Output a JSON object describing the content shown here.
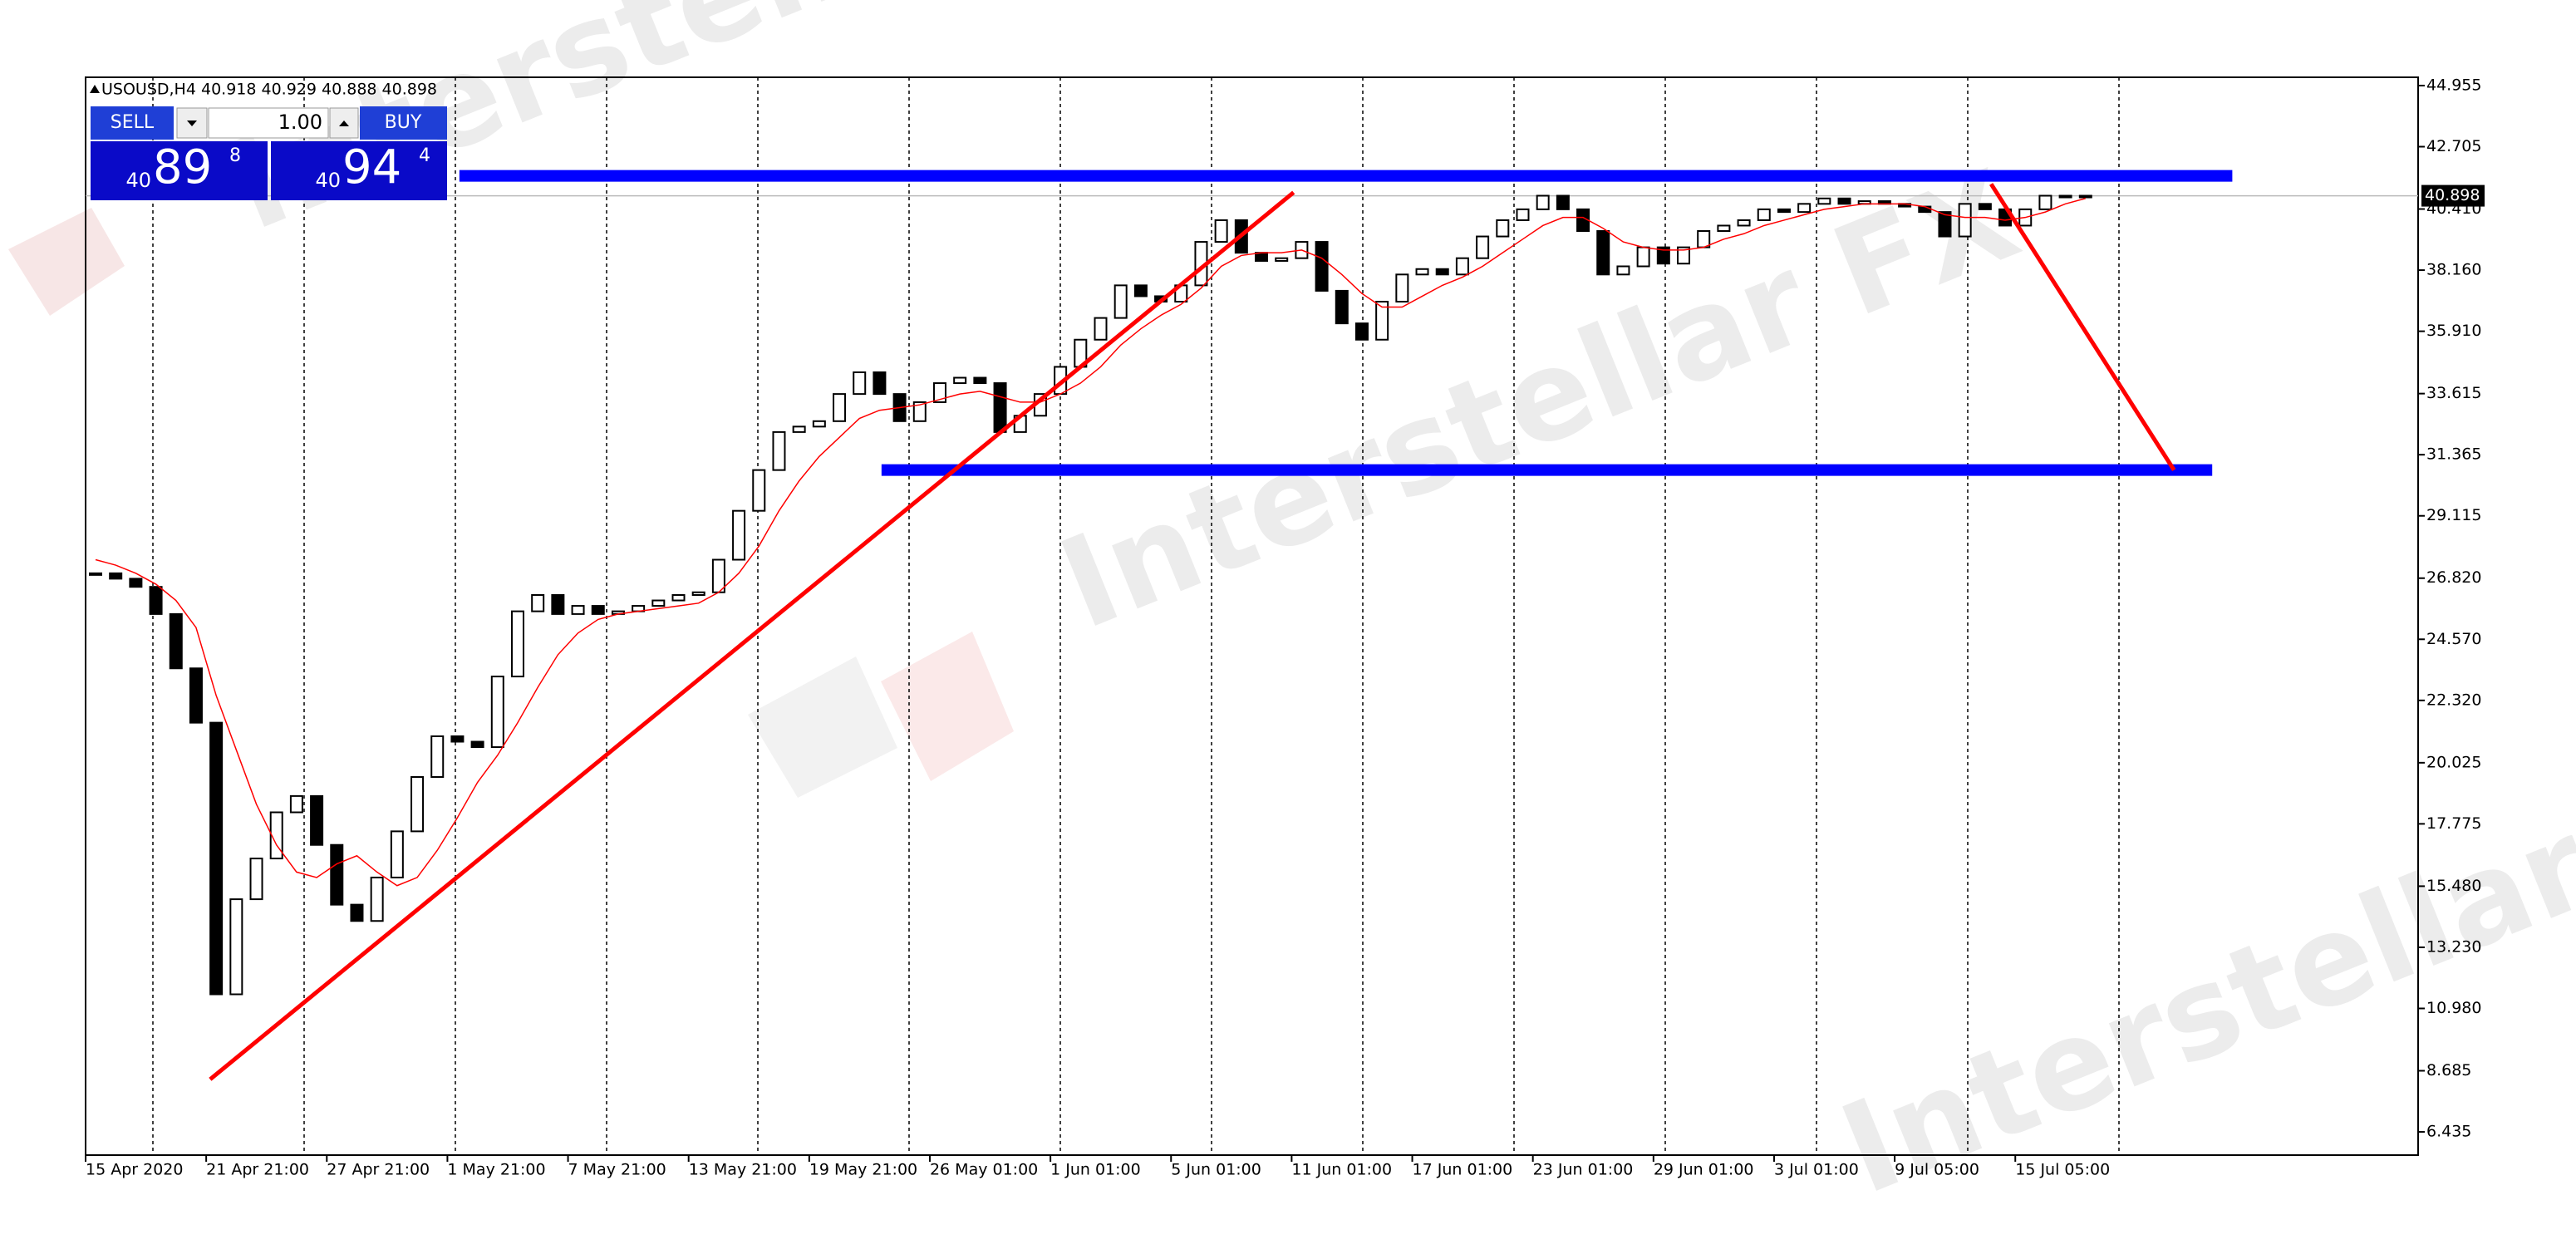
{
  "chart_data": {
    "type": "candlestick",
    "title": "USOUSD,H4  40.918 40.929 40.888 40.898",
    "watermark": "Interstellar FX",
    "categories": [
      "15 Apr 2020",
      null,
      null,
      null,
      null,
      null,
      "21 Apr 21:00",
      null,
      null,
      null,
      null,
      null,
      "27 Apr 21:00",
      null,
      null,
      null,
      null,
      null,
      "1 May 21:00",
      null,
      null,
      null,
      null,
      null,
      "7 May 21:00",
      null,
      null,
      null,
      null,
      null,
      "13 May 21:00",
      null,
      null,
      null,
      null,
      null,
      "19 May 21:00",
      null,
      null,
      null,
      null,
      null,
      "26 May 01:00",
      null,
      null,
      null,
      null,
      null,
      "1 Jun 01:00",
      null,
      null,
      null,
      null,
      null,
      "5 Jun 01:00",
      null,
      null,
      null,
      null,
      null,
      "11 Jun 01:00",
      null,
      null,
      null,
      null,
      null,
      "17 Jun 01:00",
      null,
      null,
      null,
      null,
      null,
      "23 Jun 01:00",
      null,
      null,
      null,
      null,
      null,
      "29 Jun 01:00",
      null,
      null,
      null,
      null,
      null,
      "3 Jul 01:00",
      null,
      null,
      null,
      null,
      null,
      "9 Jul 05:00",
      null,
      null,
      null,
      null,
      null,
      "15 Jul 05:00",
      null,
      null,
      null
    ],
    "values": [
      27.0,
      26.8,
      26.5,
      25.5,
      23.5,
      21.5,
      11.5,
      15.0,
      16.5,
      18.2,
      18.8,
      17.0,
      14.8,
      14.2,
      15.8,
      17.5,
      19.5,
      21.0,
      20.8,
      20.6,
      23.2,
      25.6,
      26.2,
      25.5,
      25.8,
      25.5,
      25.6,
      25.8,
      26.0,
      26.2,
      26.3,
      27.5,
      29.3,
      30.8,
      32.2,
      32.4,
      32.6,
      33.6,
      34.4,
      33.6,
      32.6,
      33.3,
      34.0,
      34.2,
      34.0,
      32.2,
      32.8,
      33.6,
      34.6,
      35.6,
      36.4,
      37.6,
      37.2,
      37.0,
      37.6,
      39.2,
      40.0,
      38.8,
      38.5,
      38.6,
      39.2,
      37.4,
      36.2,
      35.6,
      37.0,
      38.0,
      38.2,
      38.0,
      38.6,
      39.4,
      40.0,
      40.4,
      40.9,
      40.4,
      39.6,
      38.0,
      38.3,
      39.0,
      38.4,
      39.0,
      39.6,
      39.8,
      40.0,
      40.4,
      40.3,
      40.6,
      40.8,
      40.6,
      40.7,
      40.6,
      40.5,
      40.3,
      39.4,
      40.6,
      40.4,
      39.8,
      40.4,
      40.9,
      40.9,
      40.898
    ],
    "ma": {
      "color": "#ff0000",
      "values": [
        27.5,
        27.3,
        27.0,
        26.6,
        26.0,
        25.0,
        22.5,
        20.5,
        18.5,
        17.0,
        16.0,
        15.8,
        16.3,
        16.6,
        16.0,
        15.5,
        15.8,
        16.8,
        18.0,
        19.3,
        20.3,
        21.5,
        22.8,
        24.0,
        24.8,
        25.3,
        25.5,
        25.6,
        25.7,
        25.8,
        25.9,
        26.3,
        27.0,
        28.0,
        29.3,
        30.4,
        31.3,
        32.0,
        32.7,
        33.0,
        33.1,
        33.2,
        33.4,
        33.6,
        33.7,
        33.5,
        33.3,
        33.3,
        33.6,
        34.0,
        34.6,
        35.4,
        36.0,
        36.5,
        36.9,
        37.5,
        38.3,
        38.7,
        38.8,
        38.8,
        38.9,
        38.6,
        38.0,
        37.3,
        36.8,
        36.8,
        37.2,
        37.6,
        37.9,
        38.3,
        38.8,
        39.3,
        39.8,
        40.1,
        40.1,
        39.7,
        39.2,
        39.0,
        38.9,
        38.9,
        39.0,
        39.3,
        39.5,
        39.8,
        40.0,
        40.2,
        40.4,
        40.5,
        40.6,
        40.6,
        40.6,
        40.5,
        40.2,
        40.1,
        40.1,
        40.0,
        40.1,
        40.3,
        40.6,
        40.8
      ]
    },
    "levels": [
      {
        "value": 41.63,
        "from": 18.1,
        "to": 106.3,
        "color": "#0000ff"
      },
      {
        "value": 30.8,
        "from": 39.1,
        "to": 105.3,
        "color": "#0000ff"
      }
    ],
    "trendlines": [
      {
        "x": [
          5.7,
          59.6
        ],
        "y": [
          8.37,
          41.02
        ],
        "color": "#ff0000"
      },
      {
        "x": [
          94.3,
          103.4
        ],
        "y": [
          41.33,
          30.8
        ],
        "color": "#ff0000"
      }
    ],
    "last_price": 40.898,
    "ylim": [
      5.58,
      45.26
    ],
    "yticks": [
      44.955,
      42.705,
      {
        "value": 40.41,
        "label": "40.410"
      },
      {
        "value": 38.16,
        "label": "38.160"
      },
      {
        "value": 35.91,
        "label": "35.910"
      },
      33.615,
      31.365,
      29.115,
      {
        "value": 26.82,
        "label": "26.820"
      },
      {
        "value": 24.57,
        "label": "24.570"
      },
      {
        "value": 22.32,
        "label": "22.320"
      },
      20.025,
      17.775,
      {
        "value": 15.48,
        "label": "15.480"
      },
      {
        "value": 13.23,
        "label": "13.230"
      },
      {
        "value": 10.98,
        "label": "10.980"
      },
      8.685,
      6.435
    ]
  },
  "trade_panel": {
    "sell": "SELL",
    "buy": "BUY",
    "lot": "1.00",
    "bid": {
      "big": "40",
      "main": "89",
      "small": "8"
    },
    "ask": {
      "big": "40",
      "main": "94",
      "small": "4"
    }
  }
}
